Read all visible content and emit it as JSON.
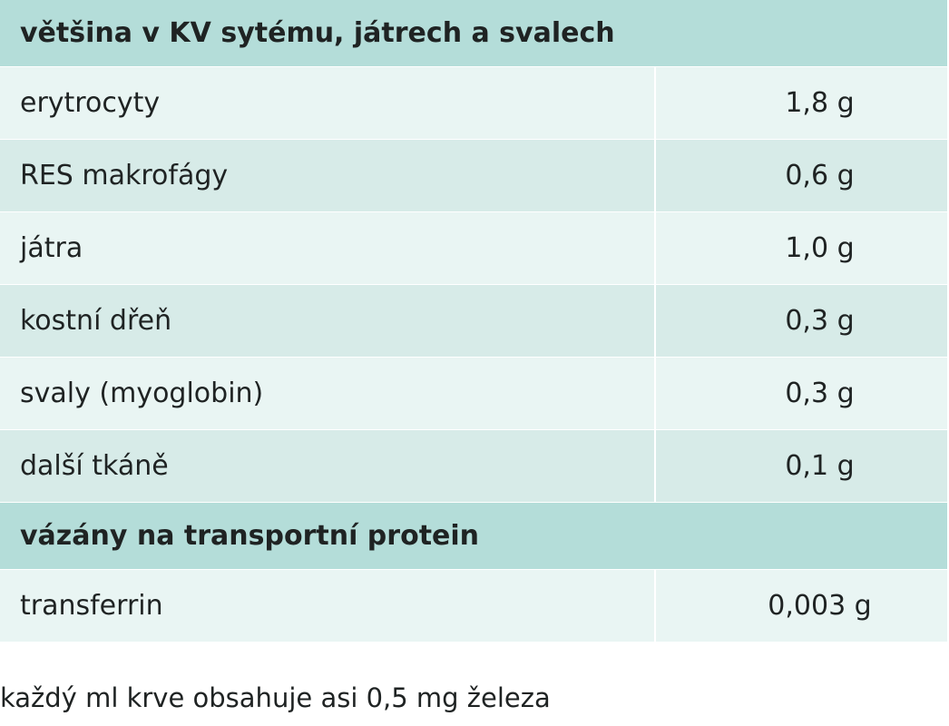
{
  "sections": [
    {
      "title": "většina v KV sytému, játrech a svalech",
      "rows": [
        {
          "label": "erytrocyty",
          "value": "1,8 g"
        },
        {
          "label": "RES makrofágy",
          "value": "0,6 g"
        },
        {
          "label": "játra",
          "value": "1,0 g"
        },
        {
          "label": "kostní dřeň",
          "value": "0,3 g"
        },
        {
          "label": "svaly (myoglobin)",
          "value": "0,3 g"
        },
        {
          "label": "další tkáně",
          "value": "0,1 g"
        }
      ]
    },
    {
      "title": "vázány na transportní protein",
      "rows": [
        {
          "label": "transferrin",
          "value": "0,003 g"
        }
      ]
    }
  ],
  "footnote": "každý ml krve obsahuje asi 0,5 mg železa",
  "colors": {
    "header_bg": "#b4ddd9",
    "row_light_bg": "#e9f5f3",
    "row_dark_bg": "#d7ebe8",
    "text": "#1f2323"
  }
}
